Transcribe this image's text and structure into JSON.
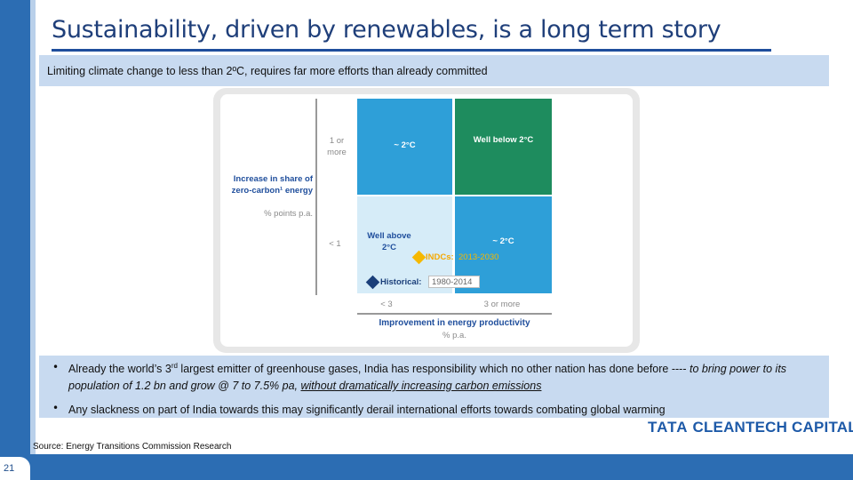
{
  "slide": {
    "title": "Sustainability, driven by renewables, is a long term story",
    "subtitle": "Limiting climate change to less than 2ºC, requires far more efforts than already committed",
    "slide_number": "21",
    "source": "Source: Energy Transitions Commission Research",
    "logo": {
      "brand": "TATA",
      "name": "CLEANTECH CAPITAL"
    }
  },
  "matrix": {
    "y_axis": {
      "title": "Increase in share of zero-carbon¹ energy",
      "unit": "% points p.a.",
      "ticks": [
        "1 or more",
        "< 1"
      ]
    },
    "x_axis": {
      "title": "Improvement in energy productivity",
      "unit": "% p.a.",
      "ticks": [
        "< 3",
        "3 or more"
      ]
    },
    "cells": {
      "top_left": "~ 2°C",
      "top_right": "Well below 2°C",
      "bottom_left": "Well above 2°C",
      "bottom_right": "~ 2°C"
    },
    "markers": {
      "indcs_label": "INDCs:",
      "indcs_years": "2013-2030",
      "historical_label": "Historical:",
      "historical_years": "1980-2014"
    },
    "colors": {
      "blue_cell": "#2e9fd8",
      "green_cell": "#1e8c5e",
      "light_cell": "#d6ecf8",
      "indc_marker": "#f5b800",
      "historical_marker": "#1b3f7a"
    }
  },
  "bullets": {
    "b1_a": "Already the world’s 3",
    "b1_sup": "rd",
    "b1_b": " largest emitter of greenhouse gases, India has responsibility which no other nation has done before  ---- ",
    "b1_c": "to bring power to its population of 1.2 bn and grow @ 7 to 7.5% pa, ",
    "b1_d": "without dramatically increasing carbon emissions",
    "b2": "Any slackness on part of India towards this may significantly derail international efforts towards combating global warming",
    "marker": "•"
  }
}
